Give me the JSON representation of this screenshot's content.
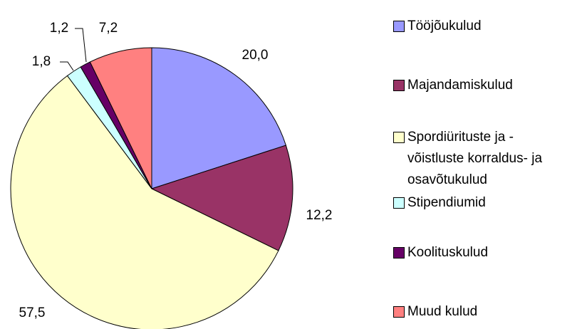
{
  "chart_data": {
    "type": "pie",
    "categories": [
      "Tööjõukulud",
      "Majandamiskulud",
      "Spordiürituste ja - võistluste korraldus- ja osavõtukulud",
      "Stipendiumid",
      "Koolituskulud",
      "Muud kulud"
    ],
    "values": [
      20.0,
      12.2,
      57.5,
      1.8,
      1.2,
      7.2
    ],
    "value_labels": [
      "20,0",
      "12,2",
      "57,5",
      "1,8",
      "1,2",
      "7,2"
    ],
    "colors": [
      "#9999ff",
      "#993366",
      "#ffffcc",
      "#ccffff",
      "#660066",
      "#ff8080"
    ],
    "legend": "right"
  }
}
